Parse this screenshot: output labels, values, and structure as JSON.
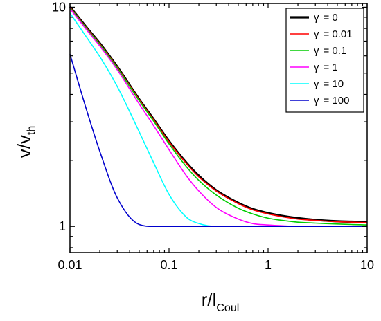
{
  "chart_data": {
    "type": "line",
    "title": "",
    "xlabel": {
      "main": "r/l",
      "sub": "Coul"
    },
    "ylabel": {
      "main": "v/v",
      "sub": "th"
    },
    "xscale": "log",
    "yscale": "log",
    "xlim": [
      0.01,
      10
    ],
    "ylim": [
      0.76,
      10.4
    ],
    "xticks": [
      {
        "value": 0.01,
        "label": "0.01"
      },
      {
        "value": 0.1,
        "label": "0.1"
      },
      {
        "value": 1,
        "label": "1"
      },
      {
        "value": 10,
        "label": "10"
      }
    ],
    "yticks": [
      {
        "value": 1,
        "label": "1"
      },
      {
        "value": 10,
        "label": "10"
      }
    ],
    "grid": false,
    "legend_position": "top-right",
    "x": [
      0.01,
      0.015,
      0.02,
      0.03,
      0.05,
      0.07,
      0.1,
      0.15,
      0.2,
      0.3,
      0.5,
      0.7,
      1,
      1.5,
      2,
      3,
      5,
      7,
      10
    ],
    "series": [
      {
        "name": "γ = 0",
        "legend_symbol": "γ",
        "legend_value": "= 0",
        "color": "#000000",
        "values": [
          10.05,
          8.0,
          6.85,
          5.35,
          3.8,
          3.08,
          2.45,
          1.95,
          1.7,
          1.46,
          1.28,
          1.2,
          1.15,
          1.11,
          1.09,
          1.07,
          1.055,
          1.05,
          1.045
        ]
      },
      {
        "name": "γ = 0.01",
        "legend_symbol": "γ",
        "legend_value": "= 0.01",
        "color": "#ff0000",
        "values": [
          10.0,
          7.95,
          6.8,
          5.32,
          3.78,
          3.06,
          2.43,
          1.93,
          1.68,
          1.45,
          1.27,
          1.19,
          1.14,
          1.1,
          1.08,
          1.065,
          1.05,
          1.045,
          1.04
        ]
      },
      {
        "name": "γ = 0.1",
        "legend_symbol": "γ",
        "legend_value": "= 0.1",
        "color": "#00cc00",
        "values": [
          9.95,
          7.9,
          6.75,
          5.28,
          3.74,
          3.02,
          2.38,
          1.87,
          1.62,
          1.39,
          1.21,
          1.14,
          1.09,
          1.06,
          1.045,
          1.035,
          1.025,
          1.02,
          1.015
        ]
      },
      {
        "name": "γ = 1",
        "legend_symbol": "γ",
        "legend_value": "= 1",
        "color": "#ff00ff",
        "values": [
          9.85,
          7.8,
          6.65,
          5.18,
          3.62,
          2.88,
          2.24,
          1.7,
          1.45,
          1.22,
          1.08,
          1.03,
          1.015,
          1.005,
          1.0,
          1.0,
          1.0,
          1.0,
          1.0
        ]
      },
      {
        "name": "γ = 10",
        "legend_symbol": "γ",
        "legend_value": "= 10",
        "color": "#00ffff",
        "values": [
          9.4,
          7.2,
          5.95,
          4.35,
          2.7,
          1.95,
          1.4,
          1.1,
          1.03,
          1.0,
          1.0,
          1.0,
          1.0,
          1.0,
          1.0,
          1.0,
          1.0,
          1.0,
          1.0
        ]
      },
      {
        "name": "γ = 100",
        "legend_symbol": "γ",
        "legend_value": "= 100",
        "color": "#0000cc",
        "values": [
          6.1,
          3.3,
          2.2,
          1.35,
          1.02,
          1.0,
          1.0,
          1.0,
          1.0,
          1.0,
          1.0,
          1.0,
          1.0,
          1.0,
          1.0,
          1.0,
          1.0,
          1.0,
          1.0
        ]
      }
    ]
  }
}
